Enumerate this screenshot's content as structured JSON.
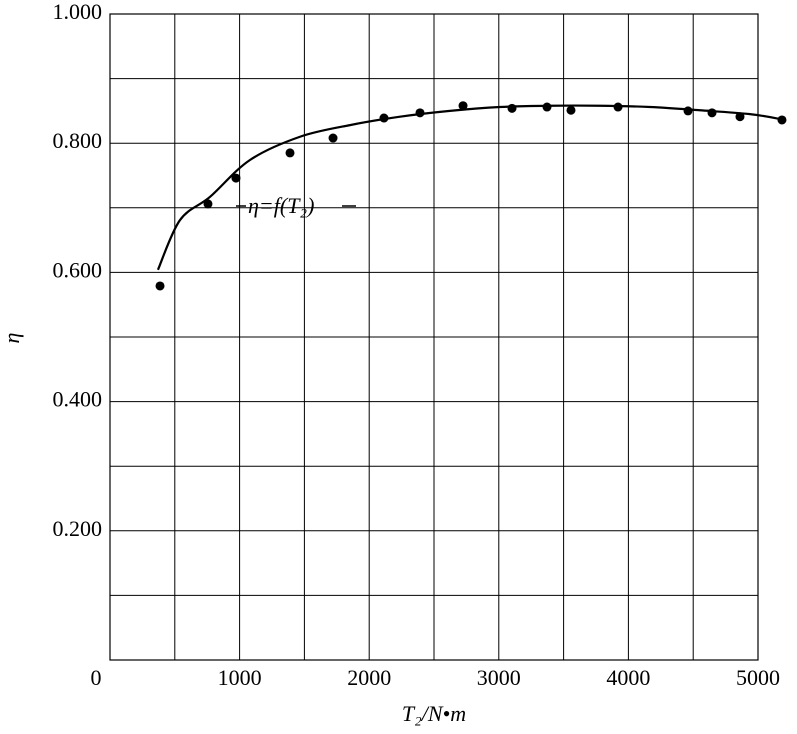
{
  "chart_data": {
    "type": "scatter",
    "xlabel": "T₂/N•m",
    "ylabel": "η",
    "annotation": "η=f(T₂)",
    "xlim": [
      0,
      5000
    ],
    "ylim": [
      0,
      1
    ],
    "xticks": [
      0,
      1000,
      2000,
      3000,
      4000,
      5000
    ],
    "yticks": [
      {
        "value": 0.2,
        "label": "0.200"
      },
      {
        "value": 0.4,
        "label": "0.400"
      },
      {
        "value": 0.6,
        "label": "0.600"
      },
      {
        "value": 0.8,
        "label": "0.800"
      },
      {
        "value": 1,
        "label": "1.000"
      }
    ],
    "grid": true,
    "color": "#000000",
    "series": [
      {
        "style": "markers",
        "x": [
          386,
          756,
          972,
          1389,
          1721,
          2114,
          2392,
          2724,
          3102,
          3372,
          3557,
          3920,
          4460,
          4645,
          4861,
          5185
        ],
        "values": [
          0.579,
          0.706,
          0.746,
          0.785,
          0.808,
          0.839,
          0.847,
          0.858,
          0.854,
          0.856,
          0.851,
          0.856,
          0.85,
          0.847,
          0.841,
          0.836
        ]
      },
      {
        "style": "line",
        "x": [
          370,
          540,
          772,
          1080,
          1466,
          1852,
          2238,
          2623,
          3009,
          3395,
          3781,
          4167,
          4552,
          4938,
          5185
        ],
        "values": [
          0.604,
          0.681,
          0.717,
          0.774,
          0.81,
          0.828,
          0.841,
          0.85,
          0.856,
          0.858,
          0.858,
          0.856,
          0.851,
          0.845,
          0.837
        ]
      }
    ]
  }
}
